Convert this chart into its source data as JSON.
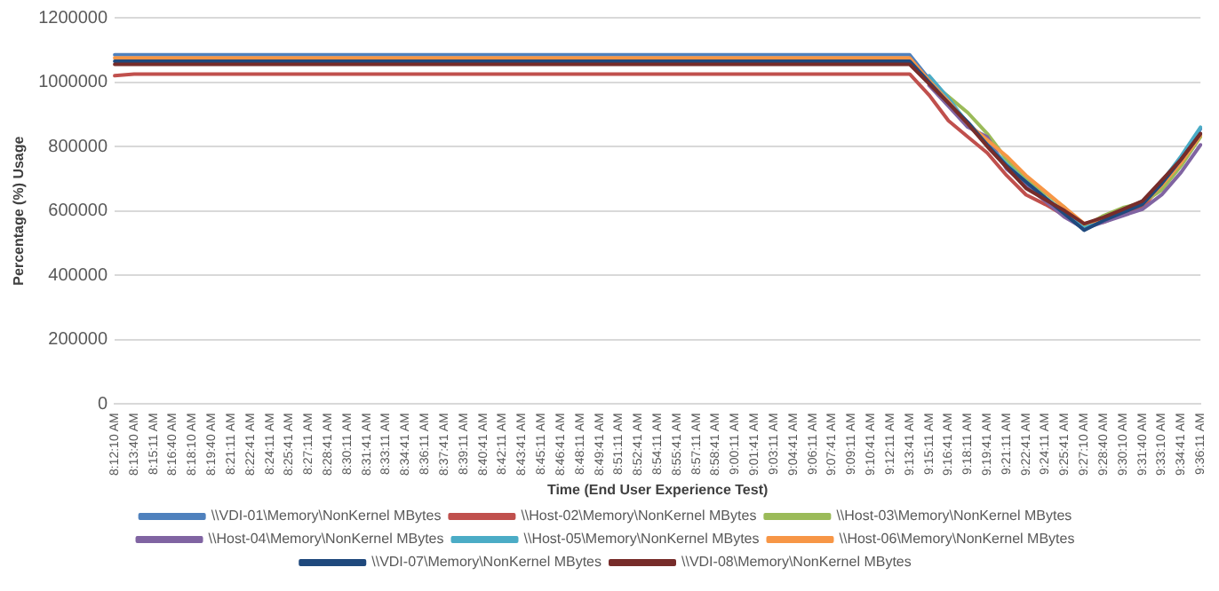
{
  "chart_data": {
    "type": "line",
    "xlabel": "Time (End User Experience Test)",
    "ylabel": "Percentage (%) Usage",
    "categories": [
      "8:12:10 AM",
      "8:13:40 AM",
      "8:15:11 AM",
      "8:16:40 AM",
      "8:18:10 AM",
      "8:19:40 AM",
      "8:21:11 AM",
      "8:22:41 AM",
      "8:24:11 AM",
      "8:25:41 AM",
      "8:27:11 AM",
      "8:28:41 AM",
      "8:30:11 AM",
      "8:31:41 AM",
      "8:33:11 AM",
      "8:34:41 AM",
      "8:36:11 AM",
      "8:37:41 AM",
      "8:39:11 AM",
      "8:40:41 AM",
      "8:42:11 AM",
      "8:43:41 AM",
      "8:45:11 AM",
      "8:46:41 AM",
      "8:48:11 AM",
      "8:49:41 AM",
      "8:51:11 AM",
      "8:52:41 AM",
      "8:54:11 AM",
      "8:55:41 AM",
      "8:57:11 AM",
      "8:58:41 AM",
      "9:00:11 AM",
      "9:01:41 AM",
      "9:03:11 AM",
      "9:04:41 AM",
      "9:06:11 AM",
      "9:07:41 AM",
      "9:09:11 AM",
      "9:10:41 AM",
      "9:12:11 AM",
      "9:13:41 AM",
      "9:15:11 AM",
      "9:16:41 AM",
      "9:18:11 AM",
      "9:19:41 AM",
      "9:21:11 AM",
      "9:22:41 AM",
      "9:24:11 AM",
      "9:25:41 AM",
      "9:27:10 AM",
      "9:28:40 AM",
      "9:30:10 AM",
      "9:31:40 AM",
      "9:33:10 AM",
      "9:34:41 AM",
      "9:36:11 AM"
    ],
    "ylim": [
      0,
      1200000
    ],
    "yticks": [
      0,
      200000,
      400000,
      600000,
      800000,
      1000000,
      1200000
    ],
    "grid": "y",
    "legend": "bottom",
    "marker": "none",
    "line_style": "solid",
    "series": [
      {
        "name": "\\\\VDI-01\\Memory\\NonKernel MBytes",
        "color": "#4f81bd",
        "values": [
          1085000,
          1085000,
          1085000,
          1085000,
          1085000,
          1085000,
          1085000,
          1085000,
          1085000,
          1085000,
          1085000,
          1085000,
          1085000,
          1085000,
          1085000,
          1085000,
          1085000,
          1085000,
          1085000,
          1085000,
          1085000,
          1085000,
          1085000,
          1085000,
          1085000,
          1085000,
          1085000,
          1085000,
          1085000,
          1085000,
          1085000,
          1085000,
          1085000,
          1085000,
          1085000,
          1085000,
          1085000,
          1085000,
          1085000,
          1085000,
          1085000,
          1085000,
          1010000,
          940000,
          875000,
          810000,
          745000,
          690000,
          640000,
          595000,
          545000,
          575000,
          600000,
          630000,
          690000,
          765000,
          855000
        ]
      },
      {
        "name": "\\\\Host-02\\Memory\\NonKernel MBytes",
        "color": "#c0504d",
        "values": [
          1020000,
          1025000,
          1025000,
          1025000,
          1025000,
          1025000,
          1025000,
          1025000,
          1025000,
          1025000,
          1025000,
          1025000,
          1025000,
          1025000,
          1025000,
          1025000,
          1025000,
          1025000,
          1025000,
          1025000,
          1025000,
          1025000,
          1025000,
          1025000,
          1025000,
          1025000,
          1025000,
          1025000,
          1025000,
          1025000,
          1025000,
          1025000,
          1025000,
          1025000,
          1025000,
          1025000,
          1025000,
          1025000,
          1025000,
          1025000,
          1025000,
          1025000,
          960000,
          880000,
          830000,
          780000,
          710000,
          650000,
          620000,
          585000,
          555000,
          565000,
          590000,
          610000,
          680000,
          750000,
          835000
        ]
      },
      {
        "name": "\\\\Host-03\\Memory\\NonKernel MBytes",
        "color": "#9bbb59",
        "values": [
          null,
          null,
          null,
          null,
          null,
          null,
          null,
          null,
          null,
          null,
          null,
          null,
          null,
          null,
          null,
          null,
          null,
          null,
          null,
          null,
          null,
          null,
          null,
          null,
          null,
          null,
          null,
          null,
          null,
          null,
          null,
          null,
          null,
          null,
          null,
          null,
          null,
          null,
          null,
          null,
          null,
          null,
          1005000,
          955000,
          905000,
          840000,
          760000,
          700000,
          655000,
          610000,
          550000,
          585000,
          610000,
          625000,
          665000,
          740000,
          830000
        ]
      },
      {
        "name": "\\\\Host-04\\Memory\\NonKernel MBytes",
        "color": "#8064a2",
        "values": [
          null,
          null,
          null,
          null,
          null,
          null,
          null,
          null,
          null,
          null,
          null,
          null,
          null,
          null,
          null,
          null,
          null,
          null,
          null,
          null,
          null,
          null,
          null,
          null,
          null,
          null,
          null,
          null,
          null,
          null,
          null,
          null,
          null,
          null,
          null,
          null,
          null,
          null,
          null,
          null,
          null,
          null,
          990000,
          925000,
          860000,
          830000,
          730000,
          680000,
          630000,
          580000,
          545000,
          565000,
          585000,
          605000,
          650000,
          720000,
          805000
        ]
      },
      {
        "name": "\\\\Host-05\\Memory\\NonKernel MBytes",
        "color": "#4bacc6",
        "values": [
          null,
          null,
          null,
          null,
          null,
          null,
          null,
          null,
          null,
          null,
          null,
          null,
          null,
          null,
          null,
          null,
          null,
          null,
          null,
          null,
          null,
          null,
          null,
          null,
          null,
          null,
          null,
          null,
          null,
          null,
          null,
          null,
          null,
          null,
          null,
          null,
          null,
          null,
          null,
          null,
          null,
          null,
          1020000,
          950000,
          870000,
          805000,
          745000,
          690000,
          640000,
          595000,
          545000,
          575000,
          600000,
          625000,
          690000,
          770000,
          860000
        ]
      },
      {
        "name": "\\\\Host-06\\Memory\\NonKernel MBytes",
        "color": "#f79646",
        "values": [
          1075000,
          1075000,
          1075000,
          1075000,
          1075000,
          1075000,
          1075000,
          1075000,
          1075000,
          1075000,
          1075000,
          1075000,
          1075000,
          1075000,
          1075000,
          1075000,
          1075000,
          1075000,
          1075000,
          1075000,
          1075000,
          1075000,
          1075000,
          1075000,
          1075000,
          1075000,
          1075000,
          1075000,
          1075000,
          1075000,
          1075000,
          1075000,
          1075000,
          1075000,
          1075000,
          1075000,
          1075000,
          1075000,
          1075000,
          1075000,
          1075000,
          1075000,
          1005000,
          940000,
          870000,
          820000,
          770000,
          710000,
          660000,
          610000,
          560000,
          575000,
          600000,
          620000,
          680000,
          750000,
          835000
        ]
      },
      {
        "name": "\\\\VDI-07\\Memory\\NonKernel MBytes",
        "color": "#1f497d",
        "values": [
          1065000,
          1065000,
          1065000,
          1065000,
          1065000,
          1065000,
          1065000,
          1065000,
          1065000,
          1065000,
          1065000,
          1065000,
          1065000,
          1065000,
          1065000,
          1065000,
          1065000,
          1065000,
          1065000,
          1065000,
          1065000,
          1065000,
          1065000,
          1065000,
          1065000,
          1065000,
          1065000,
          1065000,
          1065000,
          1065000,
          1065000,
          1065000,
          1065000,
          1065000,
          1065000,
          1065000,
          1065000,
          1065000,
          1065000,
          1065000,
          1065000,
          1065000,
          1000000,
          935000,
          875000,
          805000,
          740000,
          690000,
          640000,
          590000,
          540000,
          570000,
          595000,
          620000,
          685000,
          760000,
          840000
        ]
      },
      {
        "name": "\\\\VDI-08\\Memory\\NonKernel MBytes",
        "color": "#772c2a",
        "values": [
          1055000,
          1055000,
          1055000,
          1055000,
          1055000,
          1055000,
          1055000,
          1055000,
          1055000,
          1055000,
          1055000,
          1055000,
          1055000,
          1055000,
          1055000,
          1055000,
          1055000,
          1055000,
          1055000,
          1055000,
          1055000,
          1055000,
          1055000,
          1055000,
          1055000,
          1055000,
          1055000,
          1055000,
          1055000,
          1055000,
          1055000,
          1055000,
          1055000,
          1055000,
          1055000,
          1055000,
          1055000,
          1055000,
          1055000,
          1055000,
          1055000,
          1055000,
          995000,
          935000,
          870000,
          800000,
          735000,
          670000,
          635000,
          600000,
          560000,
          580000,
          605000,
          630000,
          695000,
          760000,
          840000
        ]
      }
    ]
  }
}
